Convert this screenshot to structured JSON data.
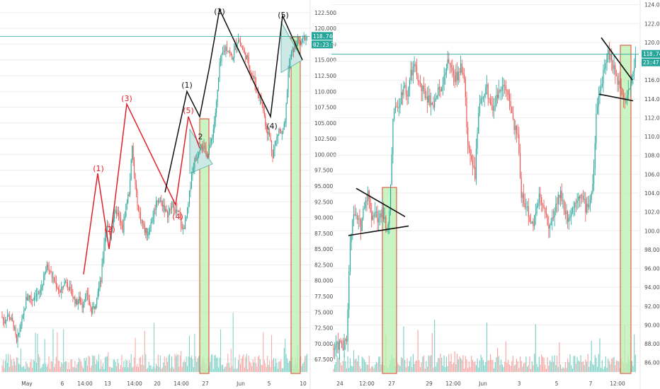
{
  "colors": {
    "up": "#26a69a",
    "down": "#ef5350",
    "vol_up": "#7fd1c6",
    "vol_down": "#f5a8a6",
    "wave_red": "#e0202a",
    "wave_black": "#111111",
    "box_fill": "#b9f0b0",
    "box_stroke": "#e0402a",
    "triangle_fill": "#cde9e6",
    "priceline": "#26a69a",
    "badge": "#26a69a",
    "grid": "#eeeeee"
  },
  "chart_data": [
    {
      "type": "candlestick",
      "name": "left",
      "ylim": [
        65.5,
        124.5
      ],
      "y_ticks": [
        "67.500",
        "70.000",
        "72.500",
        "75.000",
        "77.500",
        "80.000",
        "82.500",
        "85.000",
        "87.500",
        "90.000",
        "92.500",
        "95.000",
        "97.500",
        "100.000",
        "102.500",
        "105.000",
        "107.500",
        "110.000",
        "112.500",
        "115.000",
        "117.500",
        "120.000",
        "122.500"
      ],
      "x_ticks": [
        "May",
        "6",
        "14:00",
        "13",
        "14:00",
        "20",
        "14:00",
        "27",
        "Jun",
        "5",
        "10"
      ],
      "last_price": "118.740",
      "countdown": "02:23:47",
      "close_path": [
        74.5,
        73.5,
        74.5,
        74.0,
        73.0,
        70.0,
        72.5,
        74.0,
        77.0,
        77.5,
        77.0,
        78.0,
        77.5,
        79.0,
        81.0,
        82.5,
        81.0,
        80.0,
        79.0,
        78.0,
        79.5,
        80.0,
        78.5,
        77.5,
        76.5,
        77.0,
        76.0,
        78.0,
        77.0,
        75.0,
        76.0,
        78.5,
        80.0,
        86.0,
        89.0,
        87.0,
        90.0,
        91.0,
        89.5,
        88.0,
        92.0,
        94.0,
        101.0,
        95.0,
        91.0,
        89.5,
        88.0,
        87.5,
        89.0,
        91.0,
        93.0,
        92.5,
        92.0,
        90.5,
        91.0,
        92.0,
        91.0,
        90.5,
        88.0,
        89.0,
        92.0,
        97.0,
        99.0,
        100.0,
        102.0,
        101.0,
        100.0,
        101.5,
        104.0,
        108.0,
        114.0,
        116.0,
        117.0,
        116.5,
        115.0,
        117.0,
        118.5,
        117.0,
        116.0,
        115.0,
        113.0,
        112.0,
        110.0,
        109.0,
        107.0,
        104.0,
        103.0,
        100.0,
        102.0,
        104.0,
        103.0,
        105.0,
        113.0,
        116.0,
        117.0,
        118.0,
        117.5,
        118.5,
        118.74
      ],
      "waves": [
        {
          "id": "red",
          "points": [
            [
              118,
              81
            ],
            [
              138,
              97
            ],
            [
              154,
              85
            ],
            [
              179,
              108
            ],
            [
              248,
              92
            ],
            [
              266,
              106
            ],
            [
              282,
              101
            ]
          ],
          "labels": [
            "(1)",
            "(2)",
            "(3)",
            "(4)",
            "(5)"
          ]
        },
        {
          "id": "black",
          "points": [
            [
              233,
              94
            ],
            [
              264,
              110
            ],
            [
              282,
              106
            ],
            [
              296,
              114
            ],
            [
              310,
              123
            ],
            [
              356,
              112
            ],
            [
              382,
              106
            ],
            [
              399,
              122
            ],
            [
              427,
              115
            ]
          ],
          "labels": [
            "(1)",
            "2",
            "(3)",
            "(4)",
            "(5)"
          ]
        }
      ]
    },
    {
      "type": "candlestick",
      "name": "right",
      "ylim": [
        85.0,
        124.5
      ],
      "y_ticks": [
        "86.000",
        "88.000",
        "90.000",
        "92.000",
        "94.000",
        "96.000",
        "98.000",
        "100.000",
        "102.000",
        "104.000",
        "106.000",
        "108.000",
        "110.000",
        "112.000",
        "114.000",
        "116.000",
        "118.000",
        "120.000",
        "122.000",
        "124.000"
      ],
      "x_ticks": [
        "24",
        "12:00",
        "27",
        "29",
        "12:00",
        "Jun",
        "3",
        "5",
        "7",
        "12:00"
      ],
      "last_price": "118.740",
      "countdown": "23:47",
      "close_path": [
        87.5,
        87.5,
        88.0,
        87.5,
        88.5,
        99.0,
        102.0,
        101.0,
        100.5,
        103.0,
        104.0,
        101.5,
        102.0,
        101.0,
        102.5,
        100.5,
        101.5,
        112.0,
        113.0,
        114.0,
        115.5,
        114.5,
        116.5,
        117.5,
        116.0,
        115.0,
        114.5,
        114.0,
        113.5,
        114.0,
        115.0,
        116.0,
        117.5,
        118.0,
        116.0,
        116.5,
        117.5,
        116.0,
        109.0,
        108.0,
        106.0,
        112.5,
        114.0,
        115.5,
        114.0,
        113.0,
        114.0,
        115.0,
        116.0,
        114.5,
        113.0,
        111.0,
        110.0,
        104.0,
        103.0,
        101.5,
        100.5,
        102.0,
        104.0,
        102.5,
        101.5,
        100.5,
        101.5,
        103.0,
        104.0,
        102.5,
        101.5,
        102.0,
        103.0,
        104.0,
        103.5,
        102.5,
        103.0,
        104.5,
        112.0,
        114.5,
        117.0,
        119.0,
        118.5,
        117.0,
        116.0,
        115.5,
        114.0,
        115.0,
        116.0,
        118.74
      ],
      "lines": [
        {
          "id": "upper-left",
          "points": [
            [
              503,
              104.5
            ],
            [
              572,
              101.5
            ]
          ]
        },
        {
          "id": "lower-left",
          "points": [
            [
              492,
              99.5
            ],
            [
              577,
              100.5
            ]
          ]
        },
        {
          "id": "upper-right",
          "points": [
            [
              849,
              120.5
            ],
            [
              893,
              116.0
            ]
          ]
        },
        {
          "id": "lower-right",
          "points": [
            [
              846,
              114.5
            ],
            [
              894,
              113.8
            ]
          ]
        }
      ]
    }
  ]
}
